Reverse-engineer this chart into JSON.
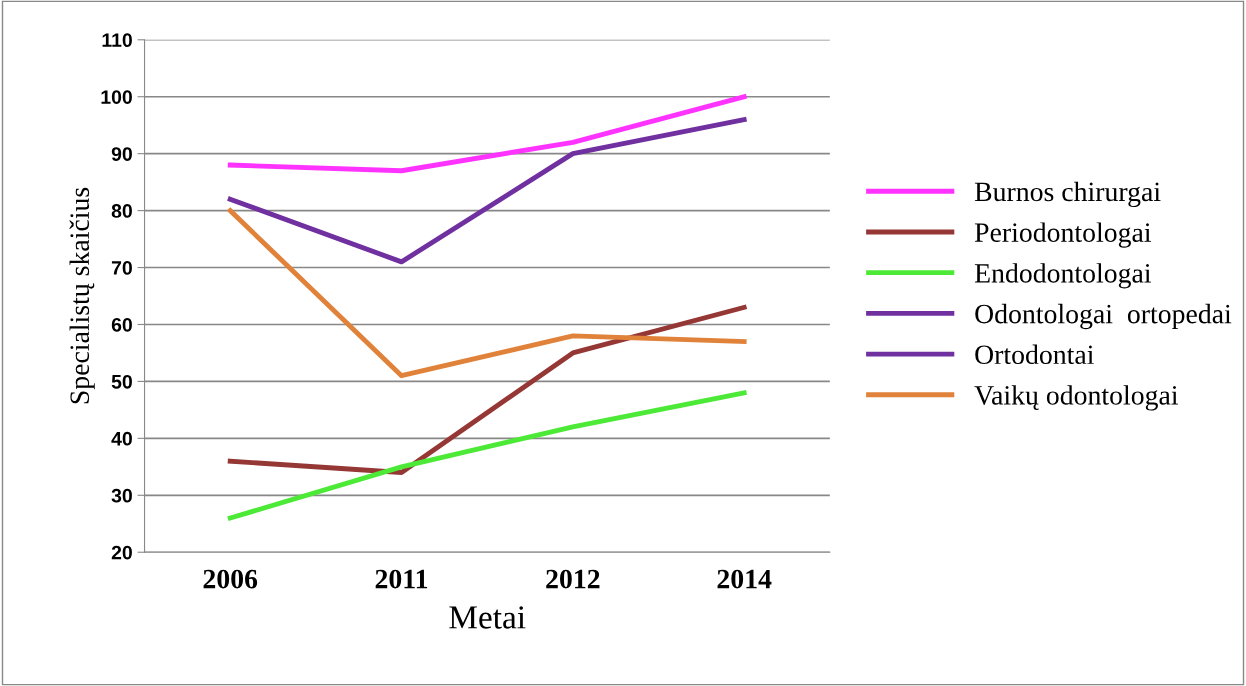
{
  "chart_data": {
    "type": "line",
    "xlabel": "Metai",
    "ylabel": "Specialistų skaičius",
    "categories": [
      "2006",
      "2011",
      "2012",
      "2014"
    ],
    "series": [
      {
        "name": "Burnos chirurgai",
        "color": "#ff33ff",
        "values": [
          88,
          87,
          92,
          100
        ]
      },
      {
        "name": "Periodontologai",
        "color": "#953735",
        "values": [
          36,
          34,
          55,
          63
        ]
      },
      {
        "name": "Endodontologai",
        "color": "#4cea36",
        "values": [
          26,
          35,
          42,
          48
        ]
      },
      {
        "name": "Odontologai  ortopedai",
        "color": "#7030a0",
        "values": [
          null,
          null,
          null,
          null
        ]
      },
      {
        "name": "Ortodontai",
        "color": "#7030a0",
        "values": [
          82,
          71,
          90,
          96
        ]
      },
      {
        "name": "Vaikų odontologai",
        "color": "#e0823a",
        "values": [
          80,
          51,
          58,
          57
        ]
      }
    ],
    "ylim": [
      20,
      110
    ],
    "yticks": [
      20,
      30,
      40,
      50,
      60,
      70,
      80,
      90,
      100,
      110
    ],
    "grid": "y",
    "legend": "right",
    "marker": "none",
    "line_style": "solid"
  }
}
